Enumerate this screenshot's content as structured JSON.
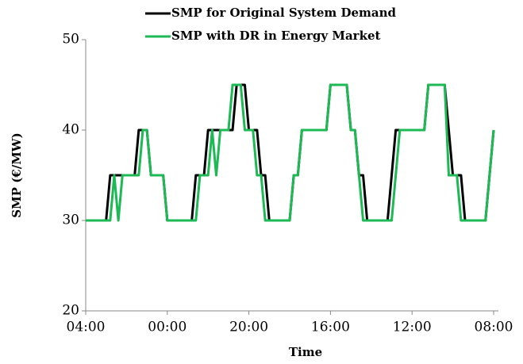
{
  "chart_data": {
    "type": "line",
    "xlabel": "Time",
    "ylabel": "SMP (€/MW)",
    "categories": [
      "04:00",
      null,
      null,
      null,
      null,
      null,
      null,
      null,
      null,
      null,
      null,
      null,
      null,
      null,
      null,
      null,
      null,
      null,
      null,
      null,
      "00:00",
      null,
      null,
      null,
      null,
      null,
      null,
      null,
      null,
      null,
      null,
      null,
      null,
      null,
      null,
      null,
      null,
      null,
      null,
      null,
      "20:00",
      null,
      null,
      null,
      null,
      null,
      null,
      null,
      null,
      null,
      null,
      null,
      null,
      null,
      null,
      null,
      null,
      null,
      null,
      null,
      "16:00",
      null,
      null,
      null,
      null,
      null,
      null,
      null,
      null,
      null,
      null,
      null,
      null,
      null,
      null,
      null,
      null,
      null,
      null,
      null,
      "12:00",
      null,
      null,
      null,
      null,
      null,
      null,
      null,
      null,
      null,
      null,
      null,
      null,
      null,
      null,
      null,
      null,
      null,
      null,
      null,
      "08:00"
    ],
    "series": [
      {
        "name": "SMP for Original System Demand",
        "color": "#000000",
        "values": [
          30,
          30,
          30,
          30,
          30,
          30,
          35,
          35,
          35,
          35,
          35,
          35,
          35,
          40,
          40,
          40,
          35,
          35,
          35,
          35,
          30,
          30,
          30,
          30,
          30,
          30,
          30,
          35,
          35,
          35,
          40,
          40,
          40,
          40,
          40,
          40,
          40,
          45,
          45,
          45,
          40,
          40,
          40,
          35,
          35,
          30,
          30,
          30,
          30,
          30,
          30,
          35,
          35,
          40,
          40,
          40,
          40,
          40,
          40,
          40,
          45,
          45,
          45,
          45,
          45,
          40,
          40,
          35,
          35,
          30,
          30,
          30,
          30,
          30,
          30,
          35,
          40,
          40,
          40,
          40,
          40,
          40,
          40,
          40,
          45,
          45,
          45,
          45,
          45,
          40,
          35,
          35,
          35,
          30,
          30,
          30,
          30,
          30,
          30,
          35,
          40
        ]
      },
      {
        "name": "SMP with DR in Energy Market",
        "color": "#1db954",
        "values": [
          30,
          30,
          30,
          30,
          30,
          30,
          30,
          35,
          30,
          35,
          35,
          35,
          35,
          35,
          40,
          40,
          35,
          35,
          35,
          35,
          30,
          30,
          30,
          30,
          30,
          30,
          30,
          30,
          35,
          35,
          35,
          40,
          35,
          40,
          40,
          40,
          45,
          45,
          45,
          40,
          40,
          40,
          35,
          35,
          30,
          30,
          30,
          30,
          30,
          30,
          30,
          35,
          35,
          40,
          40,
          40,
          40,
          40,
          40,
          40,
          45,
          45,
          45,
          45,
          45,
          40,
          40,
          35,
          30,
          30,
          30,
          30,
          30,
          30,
          30,
          30,
          35,
          40,
          40,
          40,
          40,
          40,
          40,
          40,
          45,
          45,
          45,
          45,
          45,
          35,
          35,
          35,
          30,
          30,
          30,
          30,
          30,
          30,
          30,
          35,
          40
        ]
      }
    ],
    "ylim": [
      20,
      50
    ],
    "yticks": [
      20,
      30,
      40,
      50
    ],
    "legend": "top"
  }
}
